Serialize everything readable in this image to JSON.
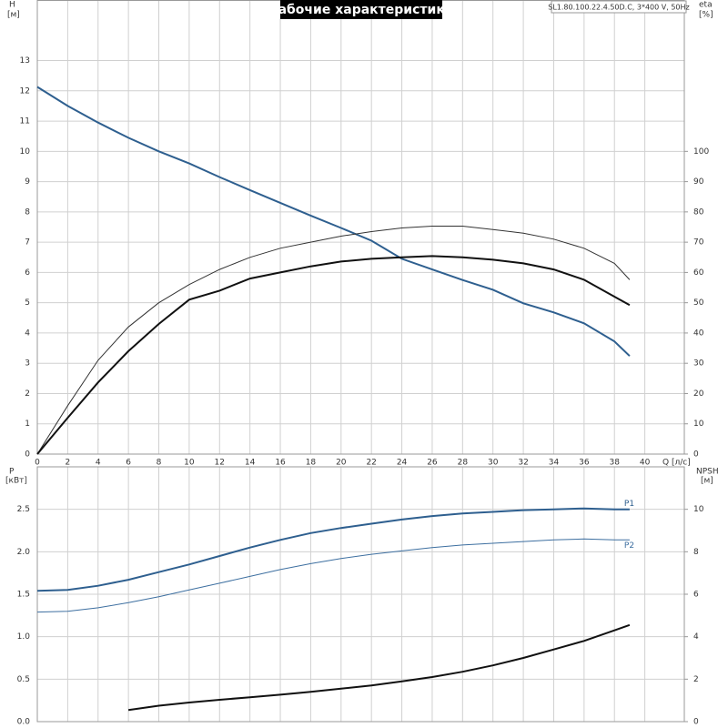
{
  "chart_data": [
    {
      "type": "line",
      "title": "Рабочие характеристики",
      "subtitle": "SL1.80.100.22.4.50D.C, 3*400 V, 50Hz",
      "y_label": "H",
      "y_unit": "[м]",
      "y2_label": "eta",
      "y2_unit": "[%]",
      "x_label": "Q [л/с]",
      "x": [
        0,
        2,
        4,
        6,
        8,
        10,
        12,
        14,
        16,
        18,
        20,
        22,
        24,
        26,
        28,
        30,
        32,
        34,
        36,
        38,
        39
      ],
      "xlim": [
        0,
        42.6
      ],
      "xticks": [
        0,
        2,
        4,
        6,
        8,
        10,
        12,
        14,
        16,
        18,
        20,
        22,
        24,
        26,
        28,
        30,
        32,
        34,
        36,
        38,
        40
      ],
      "ylim": [
        0,
        15
      ],
      "yticks": [
        0,
        1,
        2,
        3,
        4,
        5,
        6,
        7,
        8,
        9,
        10,
        11,
        12,
        13
      ],
      "y2lim": [
        0,
        150
      ],
      "y2ticks": [
        0,
        10,
        20,
        30,
        40,
        50,
        60,
        70,
        80,
        90,
        100
      ],
      "grid": true,
      "series": [
        {
          "color": "#2e5f8f",
          "line_width": 2,
          "values": [
            12.13,
            11.5,
            10.95,
            10.45,
            10.0,
            9.6,
            9.15,
            8.72,
            8.3,
            7.88,
            7.47,
            7.05,
            6.45,
            6.1,
            5.75,
            5.43,
            4.98,
            4.68,
            4.32,
            3.72,
            3.24
          ]
        },
        {
          "color": "#333333",
          "line_width": 1,
          "axis": "y2",
          "values": [
            0,
            16,
            31,
            42,
            50,
            56,
            61,
            65,
            68,
            70,
            72,
            73.5,
            74.7,
            75.3,
            75.3,
            74.2,
            73,
            71,
            68,
            63,
            57.6
          ]
        },
        {
          "color": "#111111",
          "line_width": 2,
          "axis": "y2",
          "values": [
            0,
            12,
            23.7,
            34,
            43,
            51,
            54,
            58,
            60,
            62,
            63.6,
            64.5,
            65,
            65.4,
            65,
            64.2,
            63,
            61,
            57.6,
            52,
            49.2
          ]
        }
      ]
    },
    {
      "type": "line",
      "y_label": "P",
      "y_unit": "[кВт]",
      "y2_label": "NPSH",
      "y2_unit": "[м]",
      "x": [
        0,
        2,
        4,
        6,
        8,
        10,
        12,
        14,
        16,
        18,
        20,
        22,
        24,
        26,
        28,
        30,
        32,
        34,
        36,
        38,
        39
      ],
      "ylim": [
        0,
        3
      ],
      "yticks": [
        {
          "value": 0,
          "label": "0.0"
        },
        0.5,
        {
          "value": 1,
          "label": "1.0"
        },
        1.5,
        {
          "value": 2,
          "label": "2.0"
        },
        2.5
      ],
      "y2lim": [
        0,
        12
      ],
      "y2ticks": [
        0,
        2,
        4,
        6,
        8,
        10
      ],
      "grid": true,
      "series": [
        {
          "name": "P1",
          "color": "#2e5f8f",
          "line_width": 2,
          "values": [
            1.54,
            1.55,
            1.6,
            1.67,
            1.76,
            1.85,
            1.95,
            2.05,
            2.14,
            2.22,
            2.28,
            2.33,
            2.38,
            2.42,
            2.45,
            2.47,
            2.49,
            2.5,
            2.51,
            2.5,
            2.5
          ]
        },
        {
          "name": "P2",
          "color": "#3d6fa0",
          "line_width": 1,
          "values": [
            1.29,
            1.3,
            1.34,
            1.4,
            1.47,
            1.55,
            1.63,
            1.71,
            1.79,
            1.86,
            1.92,
            1.97,
            2.01,
            2.05,
            2.08,
            2.1,
            2.12,
            2.14,
            2.15,
            2.14,
            2.14
          ]
        },
        {
          "color": "#111111",
          "line_width": 2,
          "axis": "y2",
          "values": [
            null,
            null,
            null,
            0.55,
            0.75,
            0.9,
            1.03,
            1.15,
            1.27,
            1.4,
            1.55,
            1.7,
            1.9,
            2.1,
            2.35,
            2.65,
            3.0,
            3.4,
            3.8,
            4.3,
            4.55
          ]
        }
      ]
    }
  ]
}
